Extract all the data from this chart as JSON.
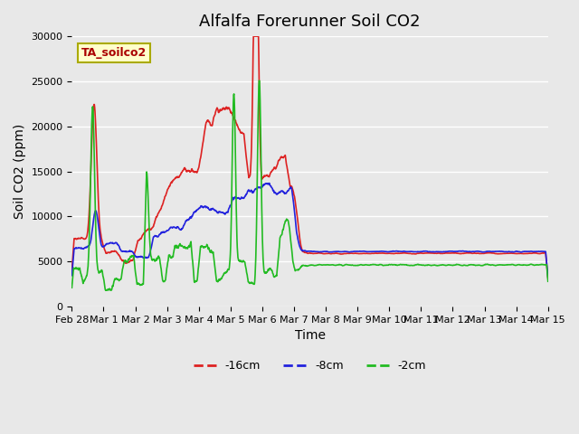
{
  "title": "Alfalfa Forerunner Soil CO2",
  "ylabel": "Soil CO2 (ppm)",
  "xlabel": "Time",
  "legend_label": "TA_soilco2",
  "series_labels": [
    "-16cm",
    "-8cm",
    "-2cm"
  ],
  "series_colors": [
    "#dd2222",
    "#2222dd",
    "#22bb22"
  ],
  "ylim": [
    0,
    30000
  ],
  "yticks": [
    0,
    5000,
    10000,
    15000,
    20000,
    25000,
    30000
  ],
  "xtick_positions": [
    0,
    1,
    2,
    3,
    4,
    5,
    6,
    7,
    8,
    9,
    10,
    11,
    12,
    13,
    14,
    15
  ],
  "xtick_labels": [
    "Feb 28",
    "Mar 1",
    "Mar 2",
    "Mar 3",
    "Mar 4",
    "Mar 5",
    "Mar 6",
    "Mar 7",
    "Mar 8",
    "Mar 9",
    "Mar 10",
    "Mar 11",
    "Mar 12",
    "Mar 13",
    "Mar 14",
    "Mar 15"
  ],
  "xlim": [
    0,
    15
  ],
  "background_color": "#e8e8e8",
  "title_fontsize": 13,
  "axis_label_fontsize": 10,
  "tick_fontsize": 8,
  "legend_box_color": "#ffffcc",
  "legend_box_edge_color": "#aaaa00",
  "legend_text_color": "#aa0000"
}
